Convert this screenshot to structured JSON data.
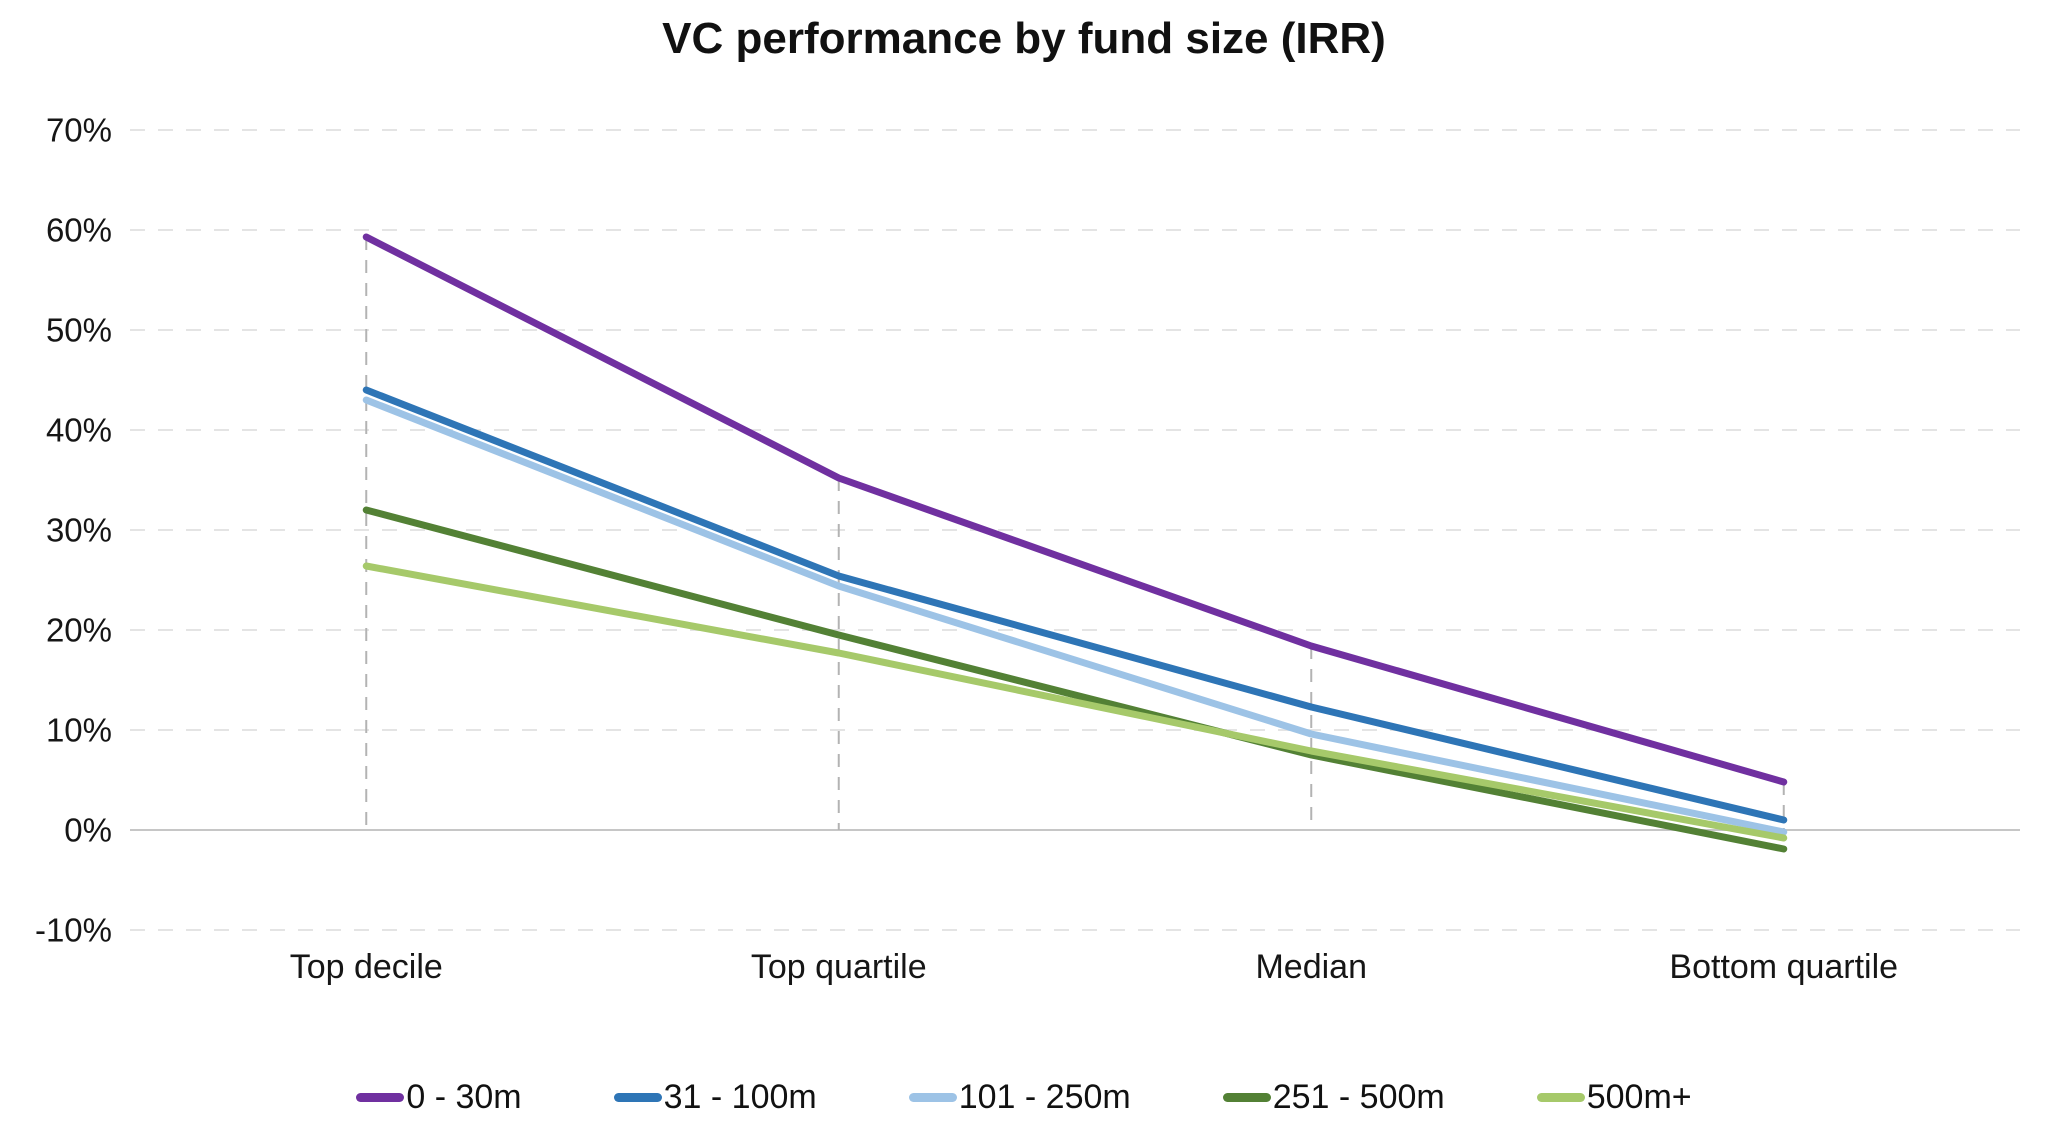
{
  "chart_data": {
    "type": "line",
    "title": "VC performance by fund size (IRR)",
    "categories": [
      "Top decile",
      "Top quartile",
      "Median",
      "Bottom quartile"
    ],
    "series": [
      {
        "name": "0 - 30m",
        "color": "#7030a0",
        "values": [
          59.3,
          35.2,
          18.4,
          4.8
        ]
      },
      {
        "name": "31 - 100m",
        "color": "#2e75b6",
        "values": [
          44.0,
          25.4,
          12.3,
          1.0
        ]
      },
      {
        "name": "101 - 250m",
        "color": "#9dc3e6",
        "values": [
          43.0,
          24.4,
          9.6,
          -0.2
        ]
      },
      {
        "name": "251 - 500m",
        "color": "#538135",
        "values": [
          32.0,
          19.5,
          7.5,
          -1.9
        ]
      },
      {
        "name": "500m+",
        "color": "#a6c96a",
        "values": [
          26.4,
          17.7,
          7.9,
          -0.8
        ]
      }
    ],
    "ylabel": "",
    "xlabel": "",
    "ylim": [
      -10,
      70
    ],
    "ytick_step": 10,
    "ytick_labels": [
      "70%",
      "60%",
      "50%",
      "40%",
      "30%",
      "20%",
      "10%",
      "0%",
      "-10%"
    ],
    "grid": "horizontal-dashed",
    "zero_line": true,
    "drop_lines": "dashed vertical from top series to category axis",
    "legend_position": "bottom",
    "line_width": 7
  },
  "style": {
    "gridline_color": "#e4e4e4",
    "zero_line_color": "#c6c6c6",
    "drop_line_color": "#b3b3b3",
    "text_color": "#161616",
    "background": "#ffffff"
  }
}
